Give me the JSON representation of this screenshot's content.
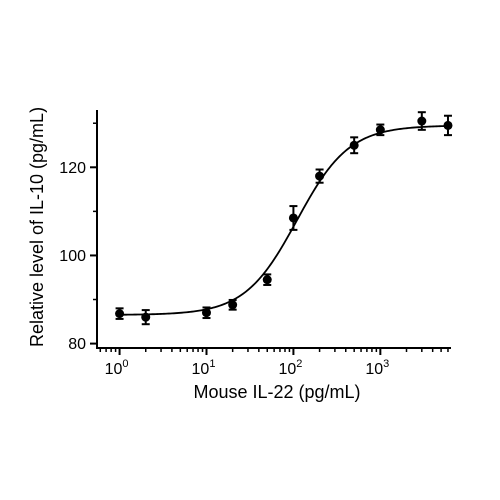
{
  "chart_data": {
    "type": "scatter",
    "xlabel": "Mouse IL-22 (pg/mL)",
    "ylabel": "Relative level of IL-10 (pg/mL)",
    "xscale": "log",
    "xlim": [
      0.55,
      6500
    ],
    "ylim": [
      79,
      133
    ],
    "x_ticks": [
      {
        "value": 1,
        "base": "10",
        "exp": "0"
      },
      {
        "value": 10,
        "base": "10",
        "exp": "1"
      },
      {
        "value": 100,
        "base": "10",
        "exp": "2"
      },
      {
        "value": 1000,
        "base": "10",
        "exp": "3"
      }
    ],
    "y_ticks": [
      {
        "value": 80,
        "label": "80"
      },
      {
        "value": 100,
        "label": "100"
      },
      {
        "value": 120,
        "label": "120"
      }
    ],
    "y_minor_ticks": [
      90,
      110,
      130
    ],
    "points": [
      {
        "x": 1,
        "y": 86.8,
        "err": 1.2
      },
      {
        "x": 2,
        "y": 86.0,
        "err": 1.6
      },
      {
        "x": 10,
        "y": 87.0,
        "err": 1.2
      },
      {
        "x": 20,
        "y": 88.8,
        "err": 1.1
      },
      {
        "x": 50,
        "y": 94.5,
        "err": 1.2
      },
      {
        "x": 100,
        "y": 108.5,
        "err": 2.7
      },
      {
        "x": 200,
        "y": 118.0,
        "err": 1.5
      },
      {
        "x": 500,
        "y": 125.0,
        "err": 1.8
      },
      {
        "x": 1000,
        "y": 128.5,
        "err": 1.2
      },
      {
        "x": 3000,
        "y": 130.5,
        "err": 2.0
      },
      {
        "x": 6000,
        "y": 129.5,
        "err": 2.2
      }
    ],
    "fit": {
      "model": "4PL",
      "bottom": 86.5,
      "top": 129.5,
      "ec50": 110,
      "hill": 1.45
    },
    "grid": false,
    "legend": false,
    "color": "#000000"
  }
}
